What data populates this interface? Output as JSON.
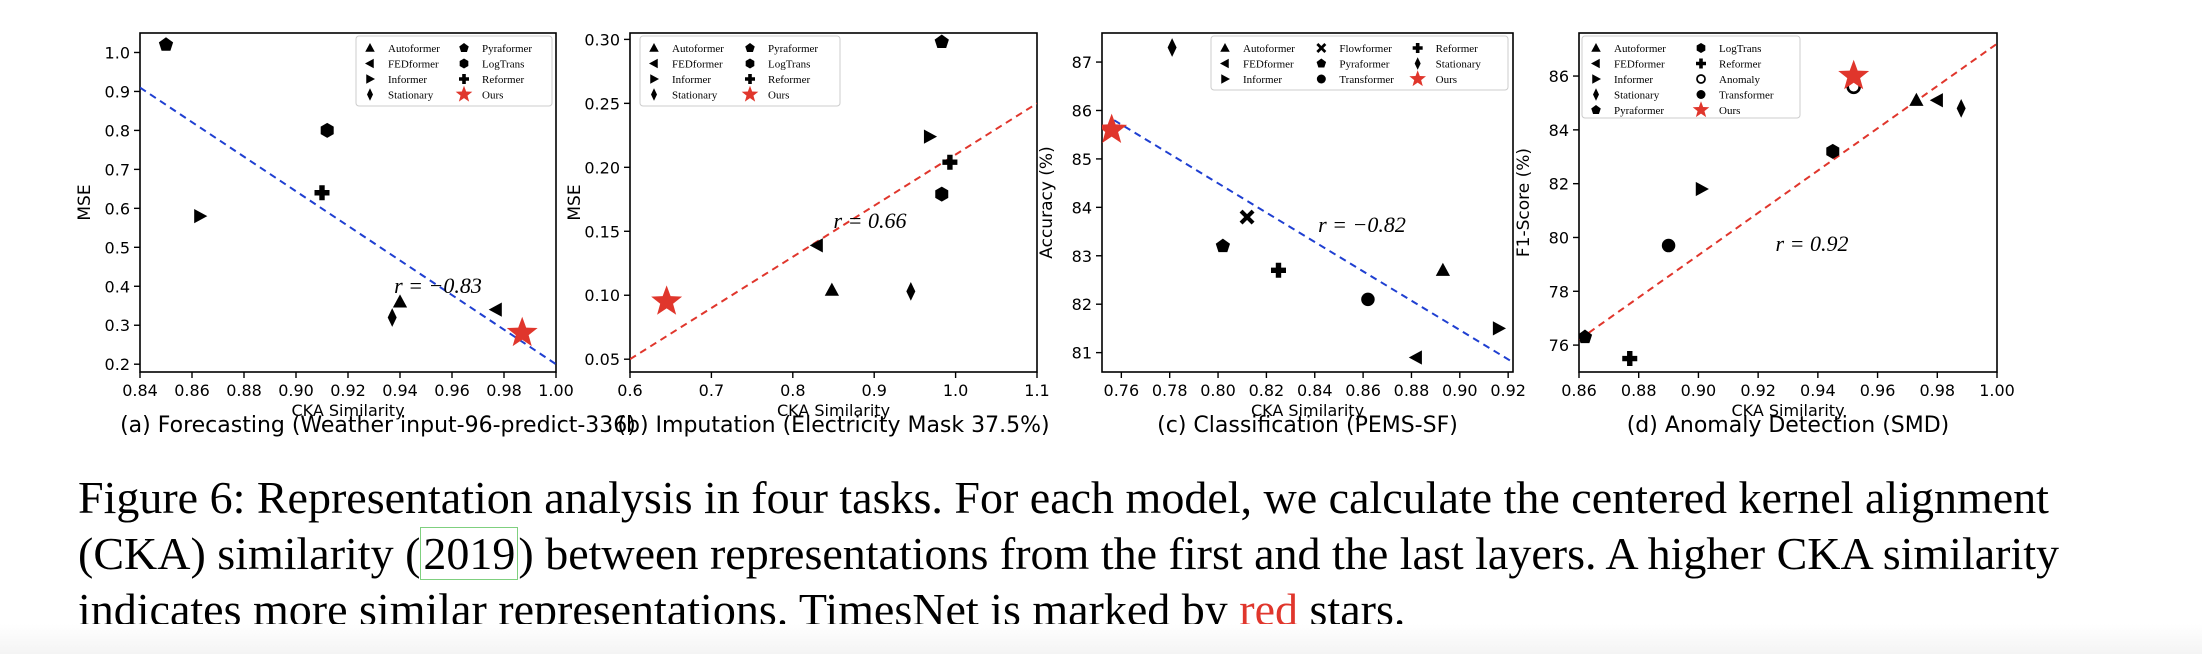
{
  "chart_data": [
    {
      "type": "scatter",
      "caption": "(a) Forecasting (Weather input-96-predict-336)",
      "xlabel": "CKA Similarity",
      "ylabel": "MSE",
      "xlim": [
        0.84,
        1.0
      ],
      "ylim": [
        0.18,
        1.05
      ],
      "xticks": [
        "0.84",
        "0.86",
        "0.88",
        "0.90",
        "0.92",
        "0.94",
        "0.96",
        "0.98",
        "1.00"
      ],
      "yticks": [
        "0.2",
        "0.3",
        "0.4",
        "0.5",
        "0.6",
        "0.7",
        "0.8",
        "0.9",
        "1.0"
      ],
      "correlation_label": "r = −0.83",
      "trend_color": "#1f3fd1",
      "trend": [
        [
          0.84,
          0.91
        ],
        [
          1.0,
          0.2
        ]
      ],
      "legend_columns": 2,
      "points": [
        {
          "name": "Autoformer",
          "marker": "triangle-up",
          "x": 0.94,
          "y": 0.36
        },
        {
          "name": "FEDformer",
          "marker": "triangle-left",
          "x": 0.977,
          "y": 0.34
        },
        {
          "name": "Informer",
          "marker": "triangle-right",
          "x": 0.863,
          "y": 0.58
        },
        {
          "name": "Stationary",
          "marker": "diamond",
          "x": 0.937,
          "y": 0.32
        },
        {
          "name": "Pyraformer",
          "marker": "pentagon",
          "x": 0.85,
          "y": 1.02
        },
        {
          "name": "LogTrans",
          "marker": "hexagon",
          "x": 0.912,
          "y": 0.8
        },
        {
          "name": "Reformer",
          "marker": "plus",
          "x": 0.91,
          "y": 0.64
        },
        {
          "name": "Ours",
          "marker": "star",
          "x": 0.987,
          "y": 0.28
        }
      ]
    },
    {
      "type": "scatter",
      "caption": "(b) Imputation (Electricity Mask 37.5%)",
      "xlabel": "CKA Similarity",
      "ylabel": "MSE",
      "xlim": [
        0.6,
        1.1
      ],
      "ylim": [
        0.04,
        0.305
      ],
      "xticks": [
        "0.6",
        "0.7",
        "0.8",
        "0.9",
        "1.0",
        "1.1"
      ],
      "yticks": [
        "0.05",
        "0.10",
        "0.15",
        "0.20",
        "0.25",
        "0.30"
      ],
      "correlation_label": "r = 0.66",
      "trend_color": "#e0362c",
      "trend": [
        [
          0.6,
          0.05
        ],
        [
          1.1,
          0.25
        ]
      ],
      "legend_columns": 2,
      "points": [
        {
          "name": "Autoformer",
          "marker": "triangle-up",
          "x": 0.848,
          "y": 0.104
        },
        {
          "name": "FEDformer",
          "marker": "triangle-left",
          "x": 0.83,
          "y": 0.139
        },
        {
          "name": "Informer",
          "marker": "triangle-right",
          "x": 0.968,
          "y": 0.224
        },
        {
          "name": "Stationary",
          "marker": "diamond",
          "x": 0.945,
          "y": 0.103
        },
        {
          "name": "Pyraformer",
          "marker": "pentagon",
          "x": 0.983,
          "y": 0.298
        },
        {
          "name": "LogTrans",
          "marker": "hexagon",
          "x": 0.983,
          "y": 0.179
        },
        {
          "name": "Reformer",
          "marker": "plus",
          "x": 0.993,
          "y": 0.204
        },
        {
          "name": "Ours",
          "marker": "star",
          "x": 0.645,
          "y": 0.095
        }
      ]
    },
    {
      "type": "scatter",
      "caption": "(c) Classification (PEMS-SF)",
      "xlabel": "CKA Similarity",
      "ylabel": "Accuracy (%)",
      "xlim": [
        0.752,
        0.922
      ],
      "ylim": [
        80.6,
        87.6
      ],
      "xticks": [
        "0.76",
        "0.78",
        "0.80",
        "0.82",
        "0.84",
        "0.86",
        "0.88",
        "0.90",
        "0.92"
      ],
      "yticks": [
        "81",
        "82",
        "83",
        "84",
        "85",
        "86",
        "87"
      ],
      "correlation_label": "r = −0.82",
      "trend_color": "#1f3fd1",
      "trend": [
        [
          0.757,
          85.8
        ],
        [
          0.922,
          80.8
        ]
      ],
      "legend_columns": 3,
      "points": [
        {
          "name": "Autoformer",
          "marker": "triangle-up",
          "x": 0.893,
          "y": 82.7
        },
        {
          "name": "FEDformer",
          "marker": "triangle-left",
          "x": 0.882,
          "y": 80.9
        },
        {
          "name": "Informer",
          "marker": "triangle-right",
          "x": 0.916,
          "y": 81.5
        },
        {
          "name": "Flowformer",
          "marker": "cross",
          "x": 0.812,
          "y": 83.8
        },
        {
          "name": "Pyraformer",
          "marker": "pentagon",
          "x": 0.802,
          "y": 83.2
        },
        {
          "name": "Transformer",
          "marker": "circle",
          "x": 0.862,
          "y": 82.1
        },
        {
          "name": "Reformer",
          "marker": "plus",
          "x": 0.825,
          "y": 82.7
        },
        {
          "name": "Stationary",
          "marker": "diamond",
          "x": 0.781,
          "y": 87.3
        },
        {
          "name": "Ours",
          "marker": "star",
          "x": 0.756,
          "y": 85.6
        }
      ]
    },
    {
      "type": "scatter",
      "caption": "(d) Anomaly Detection (SMD)",
      "xlabel": "CKA Similarity",
      "ylabel": "F1-Score (%)",
      "xlim": [
        0.86,
        1.0
      ],
      "ylim": [
        75.0,
        87.6
      ],
      "xticks": [
        "0.86",
        "0.88",
        "0.90",
        "0.92",
        "0.94",
        "0.96",
        "0.98",
        "1.00"
      ],
      "yticks": [
        "76",
        "78",
        "80",
        "82",
        "84",
        "86"
      ],
      "correlation_label": "r = 0.92",
      "trend_color": "#e0362c",
      "trend": [
        [
          0.86,
          76.2
        ],
        [
          1.0,
          87.2
        ]
      ],
      "legend_columns": 2,
      "points": [
        {
          "name": "Autoformer",
          "marker": "triangle-up",
          "x": 0.973,
          "y": 85.1
        },
        {
          "name": "FEDformer",
          "marker": "triangle-left",
          "x": 0.98,
          "y": 85.1
        },
        {
          "name": "Informer",
          "marker": "triangle-right",
          "x": 0.901,
          "y": 81.8
        },
        {
          "name": "Stationary",
          "marker": "diamond",
          "x": 0.988,
          "y": 84.8
        },
        {
          "name": "Pyraformer",
          "marker": "pentagon",
          "x": 0.862,
          "y": 76.3
        },
        {
          "name": "LogTrans",
          "marker": "hexagon",
          "x": 0.945,
          "y": 83.2
        },
        {
          "name": "Reformer",
          "marker": "plus",
          "x": 0.877,
          "y": 75.5
        },
        {
          "name": "Anomaly",
          "marker": "circle-open",
          "x": 0.952,
          "y": 85.6
        },
        {
          "name": "Transformer",
          "marker": "circle",
          "x": 0.89,
          "y": 79.7
        },
        {
          "name": "Ours",
          "marker": "star",
          "x": 0.952,
          "y": 86.0
        }
      ]
    }
  ],
  "caption": {
    "lead": "Figure 6: Representation analysis in four tasks. For each model, we calculate the centered kernel alignment (CKA) similarity (",
    "citation": "2019",
    "middle": ") between representations from the first and the last layers. A higher CKA similarity indicates more similar representations. TimesNet is marked by ",
    "red_word": "red",
    "tail": " stars."
  },
  "colors": {
    "marker": "#000000",
    "ours_star": "#e0362c",
    "citation_box": "#7fd07f"
  }
}
